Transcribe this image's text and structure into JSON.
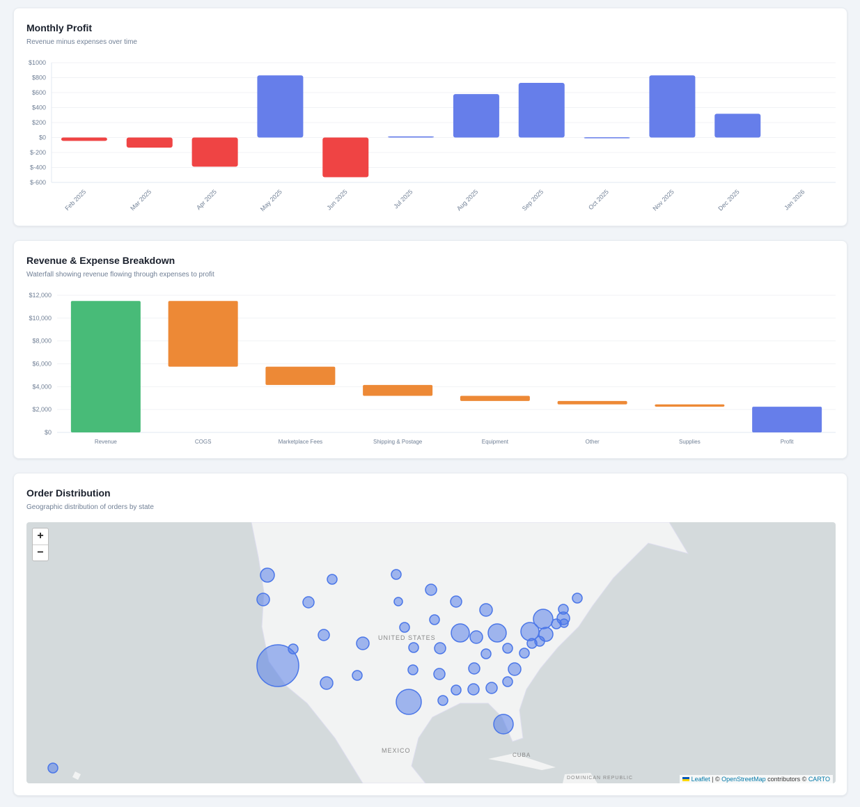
{
  "profit_card": {
    "title": "Monthly Profit",
    "subtitle": "Revenue minus expenses over time"
  },
  "waterfall_card": {
    "title": "Revenue & Expense Breakdown",
    "subtitle": "Waterfall showing revenue flowing through expenses to profit"
  },
  "map_card": {
    "title": "Order Distribution",
    "subtitle": "Geographic distribution of orders by state",
    "zoom_in": "+",
    "zoom_out": "−",
    "labels": {
      "us": "UNITED STATES",
      "mexico": "MEXICO",
      "cuba": "CUBA",
      "dr": "DOMINICAN REPUBLIC"
    },
    "attribution": {
      "leaflet": "Leaflet",
      "sep": " | © ",
      "osm": "OpenStreetMap",
      "contrib": " contributors © ",
      "carto": "CARTO"
    },
    "colors": {
      "marker": "#4a76e8"
    }
  },
  "chart_data": [
    {
      "type": "bar",
      "categories": [
        "Feb 2025",
        "Mar 2025",
        "Apr 2025",
        "May 2025",
        "Jun 2025",
        "Jul 2025",
        "Aug 2025",
        "Sep 2025",
        "Oct 2025",
        "Nov 2025",
        "Dec 2025",
        "Jan 2026"
      ],
      "values": [
        -45,
        -135,
        -390,
        830,
        -530,
        15,
        580,
        730,
        3,
        830,
        318,
        0
      ],
      "yticks": [
        "$1000",
        "$800",
        "$600",
        "$400",
        "$200",
        "$0",
        "$-200",
        "$-400",
        "$-600"
      ],
      "ylim": [
        -600,
        1000
      ],
      "grid": true,
      "colors": {
        "positive": "#667eea",
        "negative": "#ef4444"
      }
    },
    {
      "type": "waterfall",
      "categories": [
        "Revenue",
        "COGS",
        "Marketplace Fees",
        "Shipping & Postage",
        "Equipment",
        "Other",
        "Supplies",
        "Profit"
      ],
      "values": [
        11500,
        -5750,
        -1600,
        -950,
        -450,
        -300,
        -200,
        2250
      ],
      "yticks": [
        "$12,000",
        "$10,000",
        "$8,000",
        "$6,000",
        "$4,000",
        "$2,000",
        "$0"
      ],
      "ylim": [
        0,
        12000
      ],
      "grid": true,
      "colors": {
        "revenue": "#48bb78",
        "expense": "#ed8936",
        "profit": "#667eea"
      }
    }
  ]
}
